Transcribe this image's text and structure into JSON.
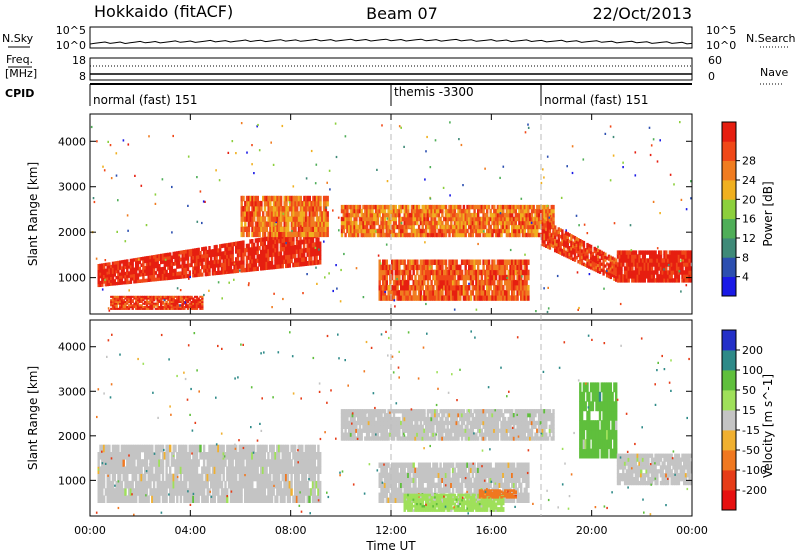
{
  "header": {
    "station": "Hokkaido (fitACF)",
    "beam": "Beam 07",
    "date": "22/Oct/2013"
  },
  "panels": {
    "nsky_label": "N.Sky",
    "nsky_top": "10^5",
    "nsky_bottom": "10^0",
    "nsearch_label": "N.Search",
    "nsearch_top": "10^5",
    "nsearch_bottom": "10^0",
    "freq_label": "Freq.",
    "freq_unit": "[MHz]",
    "freq_top": "18",
    "freq_bottom": "8",
    "nave_label": "Nave",
    "nave_top": "60",
    "nave_bottom": "0",
    "cpid_label": "CPID"
  },
  "modes": [
    {
      "label": "normal (fast) 151"
    },
    {
      "label": "themis -3300"
    },
    {
      "label": "normal (fast) 151"
    }
  ],
  "axes": {
    "ylabel": "Slant Range [km]",
    "xlabel": "Time UT",
    "y_ticks": [
      "1000",
      "2000",
      "3000",
      "4000"
    ],
    "x_ticks": [
      "00:00",
      "04:00",
      "08:00",
      "12:00",
      "16:00",
      "20:00",
      "00:00"
    ]
  },
  "power_scale": {
    "label": "Power [dB]",
    "ticks": [
      "4",
      "8",
      "12",
      "16",
      "20",
      "24",
      "28"
    ],
    "colors": [
      "#1a1ae6",
      "#2c4fb0",
      "#3f8a78",
      "#4fae58",
      "#8ccf3c",
      "#f0b020",
      "#f07c20",
      "#f04818",
      "#e61e10"
    ]
  },
  "velocity_scale": {
    "label": "Velocity [m s^-1]",
    "ticks": [
      "200",
      "100",
      "50",
      "15",
      "-15",
      "-50",
      "-100",
      "-200"
    ],
    "colors": [
      "#2430c8",
      "#2e8a88",
      "#5fbf3c",
      "#9fe05a",
      "#c4c4c4",
      "#f0b030",
      "#f07820",
      "#e63c18",
      "#e61010"
    ]
  },
  "chart_data": [
    {
      "type": "heatmap",
      "title": "Power",
      "xlabel": "Time UT",
      "ylabel": "Slant Range [km]",
      "x_unit": "hours UT",
      "xlim": [
        0,
        24
      ],
      "ylim": [
        200,
        4600
      ],
      "color_scale": "Power [dB]",
      "regions": [
        {
          "x": [
            0.3,
            9.2
          ],
          "y_low": [
            800,
            1300
          ],
          "y_high": [
            1300,
            2100
          ],
          "value": 28
        },
        {
          "x": [
            0.8,
            4.5
          ],
          "y": [
            300,
            600
          ],
          "value": 26
        },
        {
          "x": [
            6.0,
            9.5
          ],
          "y": [
            1900,
            2800
          ],
          "value": 22
        },
        {
          "x": [
            10.0,
            18.5
          ],
          "y": [
            1900,
            2600
          ],
          "value": 22
        },
        {
          "x": [
            11.5,
            17.5
          ],
          "y": [
            500,
            1400
          ],
          "value": 24
        },
        {
          "x": [
            18.0,
            21.0
          ],
          "y_low": [
            1700,
            900
          ],
          "y_high": [
            2300,
            1400
          ],
          "value": 26
        },
        {
          "x": [
            21.0,
            24.0
          ],
          "y": [
            900,
            1600
          ],
          "value": 28
        }
      ]
    },
    {
      "type": "heatmap",
      "title": "Velocity",
      "xlabel": "Time UT",
      "ylabel": "Slant Range [km]",
      "x_unit": "hours UT",
      "xlim": [
        0,
        24
      ],
      "ylim": [
        200,
        4600
      ],
      "color_scale": "Velocity [m s^-1]",
      "regions": [
        {
          "x": [
            0.3,
            9.2
          ],
          "y": [
            500,
            1800
          ],
          "value": 0
        },
        {
          "x": [
            10.0,
            18.5
          ],
          "y": [
            1900,
            2600
          ],
          "value": 0
        },
        {
          "x": [
            11.5,
            17.5
          ],
          "y": [
            500,
            1400
          ],
          "value": 0
        },
        {
          "x": [
            19.5,
            21.0
          ],
          "y": [
            1500,
            3200
          ],
          "value": 40
        },
        {
          "x": [
            21.0,
            24.0
          ],
          "y": [
            900,
            1600
          ],
          "value": 0
        },
        {
          "x": [
            12.5,
            16.5
          ],
          "y": [
            300,
            700
          ],
          "value": 30
        },
        {
          "x": [
            15.5,
            17.0
          ],
          "y": [
            600,
            800
          ],
          "value": -40
        }
      ]
    }
  ]
}
